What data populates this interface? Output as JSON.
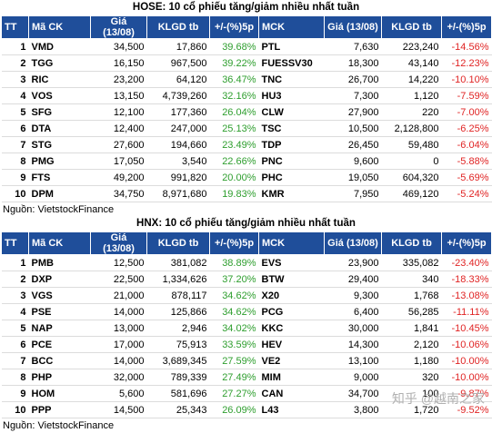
{
  "hose": {
    "title": "HOSE: 10 cổ phiếu tăng/giảm nhiều nhất tuần",
    "headers": [
      "TT",
      "Mã CK",
      "Giá (13/08)",
      "KLGD tb",
      "+/-(%)5p",
      "MCK",
      "Giá (13/08)",
      "KLGD tb",
      "+/-(%)5p"
    ],
    "rows": [
      [
        "1",
        "VMD",
        "34,500",
        "17,860",
        "39.68%",
        "PTL",
        "7,630",
        "223,240",
        "-14.56%"
      ],
      [
        "2",
        "TGG",
        "16,150",
        "967,500",
        "39.22%",
        "FUESSV30",
        "18,300",
        "43,140",
        "-12.23%"
      ],
      [
        "3",
        "RIC",
        "23,200",
        "64,120",
        "36.47%",
        "TNC",
        "26,700",
        "14,220",
        "-10.10%"
      ],
      [
        "4",
        "VOS",
        "13,150",
        "4,739,260",
        "32.16%",
        "HU3",
        "7,300",
        "1,120",
        "-7.59%"
      ],
      [
        "5",
        "SFG",
        "12,100",
        "177,360",
        "26.04%",
        "CLW",
        "27,900",
        "220",
        "-7.00%"
      ],
      [
        "6",
        "DTA",
        "12,400",
        "247,000",
        "25.13%",
        "TSC",
        "10,500",
        "2,128,800",
        "-6.25%"
      ],
      [
        "7",
        "STG",
        "27,600",
        "194,660",
        "23.49%",
        "TDP",
        "26,450",
        "59,480",
        "-6.04%"
      ],
      [
        "8",
        "PMG",
        "17,050",
        "3,540",
        "22.66%",
        "PNC",
        "9,600",
        "0",
        "-5.88%"
      ],
      [
        "9",
        "FTS",
        "49,200",
        "991,820",
        "20.00%",
        "PHC",
        "19,050",
        "604,320",
        "-5.69%"
      ],
      [
        "10",
        "DPM",
        "34,750",
        "8,971,680",
        "19.83%",
        "KMR",
        "7,950",
        "469,120",
        "-5.24%"
      ]
    ],
    "source": "Nguồn: VietstockFinance"
  },
  "hnx": {
    "title": "HNX: 10 cổ phiếu tăng/giảm nhiều nhất tuần",
    "headers": [
      "TT",
      "Mã CK",
      "Giá (13/08)",
      "KLGD tb",
      "+/-(%)5p",
      "MCK",
      "Giá (13/08)",
      "KLGD tb",
      "+/-(%)5p"
    ],
    "rows": [
      [
        "1",
        "PMB",
        "12,500",
        "381,082",
        "38.89%",
        "EVS",
        "23,900",
        "335,082",
        "-23.40%"
      ],
      [
        "2",
        "DXP",
        "22,500",
        "1,334,626",
        "37.20%",
        "BTW",
        "29,400",
        "340",
        "-18.33%"
      ],
      [
        "3",
        "VGS",
        "21,000",
        "878,117",
        "34.62%",
        "X20",
        "9,300",
        "1,768",
        "-13.08%"
      ],
      [
        "4",
        "PSE",
        "14,000",
        "125,866",
        "34.62%",
        "PCG",
        "6,400",
        "56,285",
        "-11.11%"
      ],
      [
        "5",
        "NAP",
        "13,000",
        "2,946",
        "34.02%",
        "KKC",
        "30,000",
        "1,841",
        "-10.45%"
      ],
      [
        "6",
        "PCE",
        "17,000",
        "75,913",
        "33.59%",
        "HEV",
        "14,300",
        "2,120",
        "-10.06%"
      ],
      [
        "7",
        "BCC",
        "14,000",
        "3,689,345",
        "27.59%",
        "VE2",
        "13,100",
        "1,180",
        "-10.00%"
      ],
      [
        "8",
        "PHP",
        "32,000",
        "789,339",
        "27.49%",
        "MIM",
        "9,000",
        "320",
        "-10.00%"
      ],
      [
        "9",
        "HOM",
        "5,600",
        "581,696",
        "27.27%",
        "CAN",
        "34,700",
        "100",
        "-9.87%"
      ],
      [
        "10",
        "PPP",
        "14,500",
        "25,343",
        "26.09%",
        "L43",
        "3,800",
        "1,720",
        "-9.52%"
      ]
    ],
    "source": "Nguồn: VietstockFinance"
  },
  "watermark": "知乎 @越南之家",
  "colors": {
    "header_bg": "#1f4e9a",
    "gain": "#2e9e2e",
    "loss": "#e02424"
  }
}
